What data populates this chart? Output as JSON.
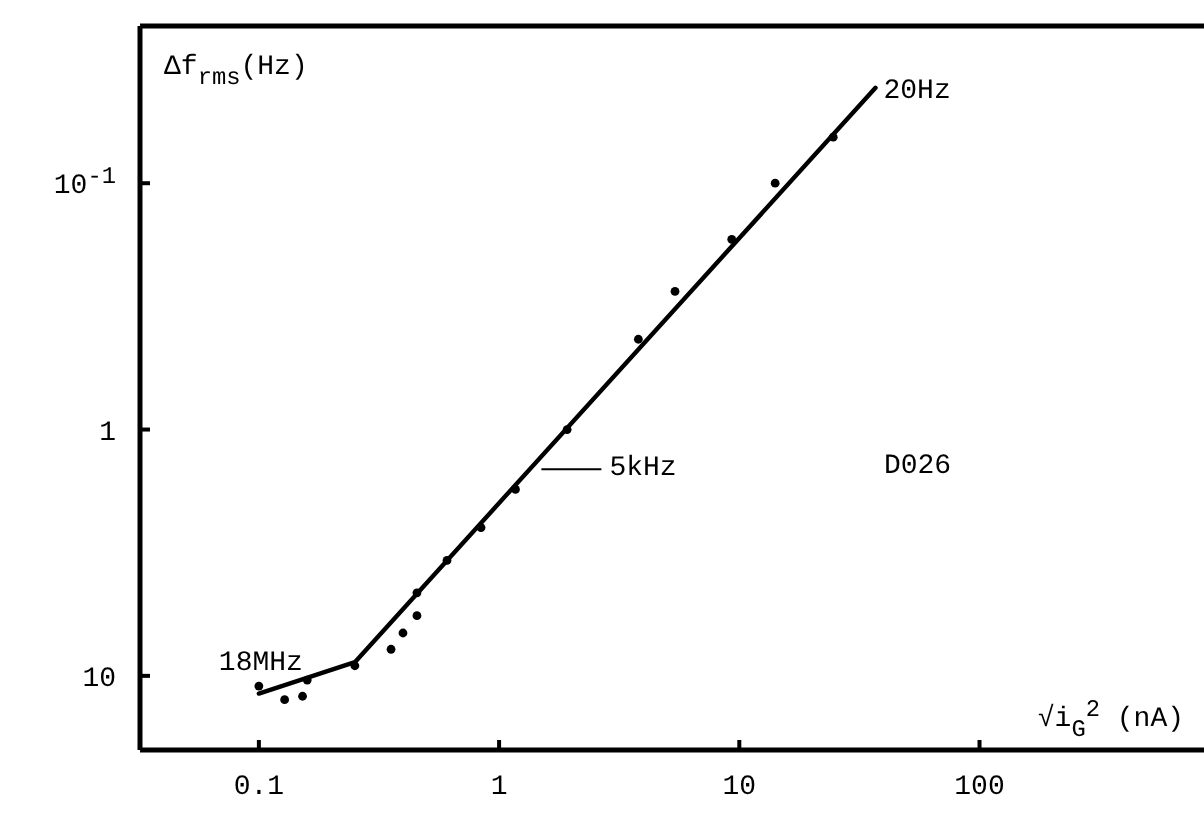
{
  "chart_data": {
    "type": "line",
    "xlabel": "√i$_{G}$$^{2}$ (nA)",
    "ylabel": "Δf$_{rms}$(Hz)",
    "log": "xy",
    "xlim": [
      0.032,
      860
    ],
    "ylim": [
      20,
      0.023
    ],
    "xticks": [
      0.1,
      1,
      10,
      100
    ],
    "yticks": [
      {
        "value": 0.1,
        "label": "10$^{-1}$"
      },
      1,
      10
    ],
    "grid": false,
    "series": [
      {
        "color": "#000000",
        "marker": "none",
        "line_style": "solid",
        "x": [
          0.1,
          0.251,
          36.9
        ],
        "values": [
          11.8,
          8.8,
          0.041
        ]
      },
      {
        "type": "scatter",
        "color": "#000000",
        "marker": "circle",
        "x": [
          0.1,
          0.128,
          0.152,
          0.159,
          0.251,
          0.355,
          0.398,
          0.455,
          0.455,
          0.607,
          0.841,
          1.17,
          1.92,
          3.8,
          5.4,
          9.3,
          14.1,
          24.6
        ],
        "values": [
          11.0,
          12.5,
          12.1,
          10.4,
          9.1,
          7.8,
          6.7,
          5.7,
          4.6,
          3.4,
          2.5,
          1.75,
          1.0,
          0.43,
          0.275,
          0.169,
          0.1,
          0.065
        ]
      }
    ],
    "annotations": [
      {
        "text": "18MHz",
        "x": 0.1,
        "y": 11.8
      },
      {
        "text": "5kHz",
        "x": 1.5,
        "y": 1.45
      },
      {
        "text": "20Hz",
        "x": 36.9,
        "y": 0.041
      },
      "D026"
    ]
  }
}
